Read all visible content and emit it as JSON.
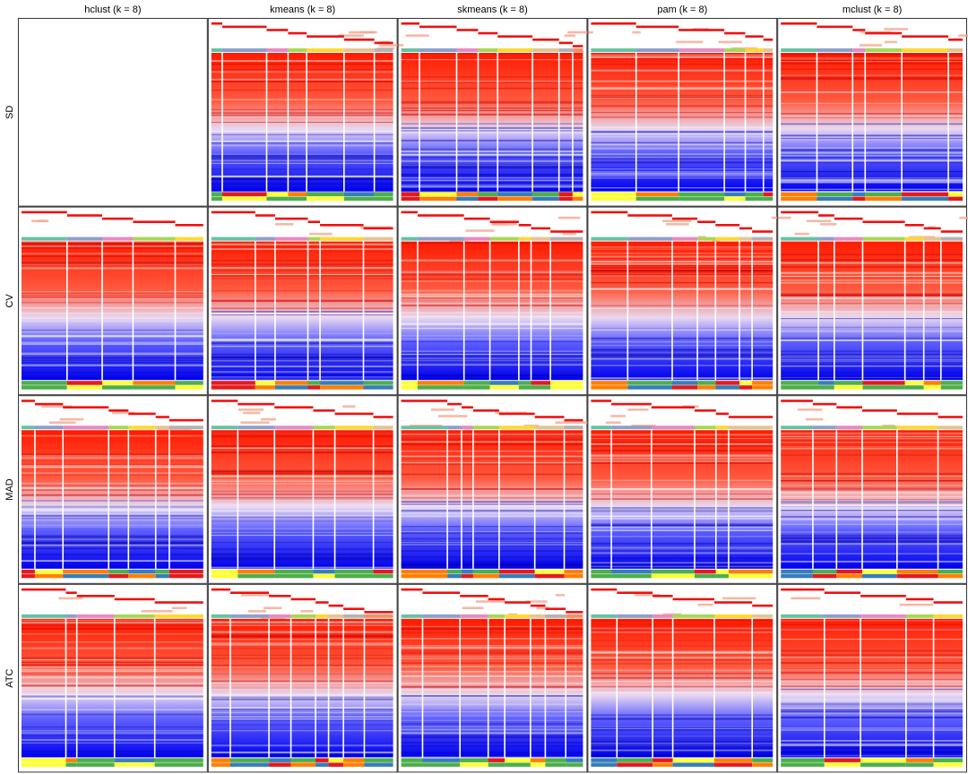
{
  "columns": [
    "hclust (k = 8)",
    "kmeans (k = 8)",
    "skmeans (k = 8)",
    "pam (k = 8)",
    "mclust (k = 8)"
  ],
  "rows": [
    "SD",
    "CV",
    "MAD",
    "ATC"
  ]
}
